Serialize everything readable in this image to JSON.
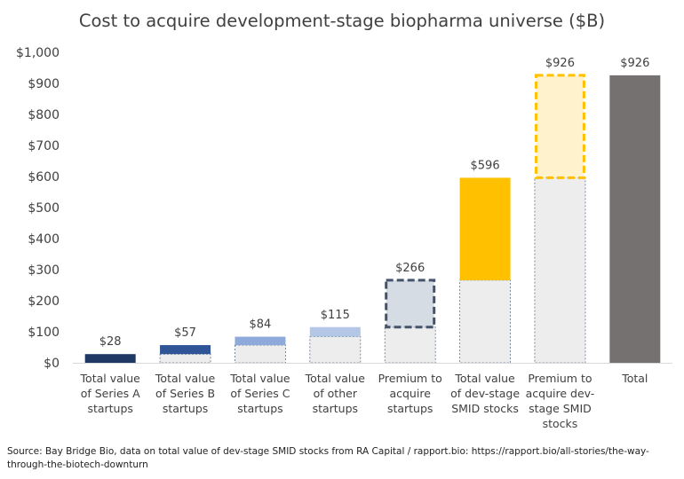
{
  "chart_data": {
    "type": "bar",
    "subtype": "waterfall",
    "title": "Cost to acquire development-stage biopharma universe ($B)",
    "ylim": [
      0,
      1000
    ],
    "ytick_values": [
      0,
      100,
      200,
      300,
      400,
      500,
      600,
      700,
      800,
      900,
      1000
    ],
    "ytick_labels": [
      "$0",
      "$100",
      "$200",
      "$300",
      "$400",
      "$500",
      "$600",
      "$700",
      "$800",
      "$900",
      "$1,000"
    ],
    "grid": false,
    "legend": "none",
    "categories": [
      [
        "Total value",
        "of Series A",
        "startups"
      ],
      [
        "Total value",
        "of Series B",
        "startups"
      ],
      [
        "Total value",
        "of Series C",
        "startups"
      ],
      [
        "Total value",
        "of other",
        "startups"
      ],
      [
        "Premium to",
        "acquire",
        "startups"
      ],
      [
        "Total value",
        "of dev-stage",
        "SMID stocks"
      ],
      [
        "Premium to",
        "acquire dev-",
        "stage SMID",
        "stocks"
      ],
      [
        "Total"
      ]
    ],
    "bars": [
      {
        "base": 0,
        "top": 28,
        "label": "$28",
        "style": "solid",
        "color": "#1f3864"
      },
      {
        "base": 28,
        "top": 57,
        "label": "$57",
        "style": "solid",
        "color": "#2f5597"
      },
      {
        "base": 57,
        "top": 84,
        "label": "$84",
        "style": "solid",
        "color": "#8eaadb"
      },
      {
        "base": 84,
        "top": 115,
        "label": "$115",
        "style": "solid",
        "color": "#b4c7e7"
      },
      {
        "base": 115,
        "top": 266,
        "label": "$266",
        "style": "dashed",
        "color": "#d6dce4",
        "stroke": "#44546a"
      },
      {
        "base": 266,
        "top": 596,
        "label": "$596",
        "style": "solid",
        "color": "#ffc000"
      },
      {
        "base": 596,
        "top": 926,
        "label": "$926",
        "style": "dashed",
        "color": "#fff2cc",
        "stroke": "#ffc000"
      },
      {
        "base": 0,
        "top": 926,
        "label": "$926",
        "style": "solid",
        "color": "#767171"
      }
    ],
    "base_fill": "#ededed",
    "base_stroke": "#5b6f8a"
  },
  "source": "Source: Bay Bridge Bio, data on total value of dev-stage SMID stocks from RA Capital / rapport.bio: https://rapport.bio/all-stories/the-way-through-the-biotech-downturn"
}
